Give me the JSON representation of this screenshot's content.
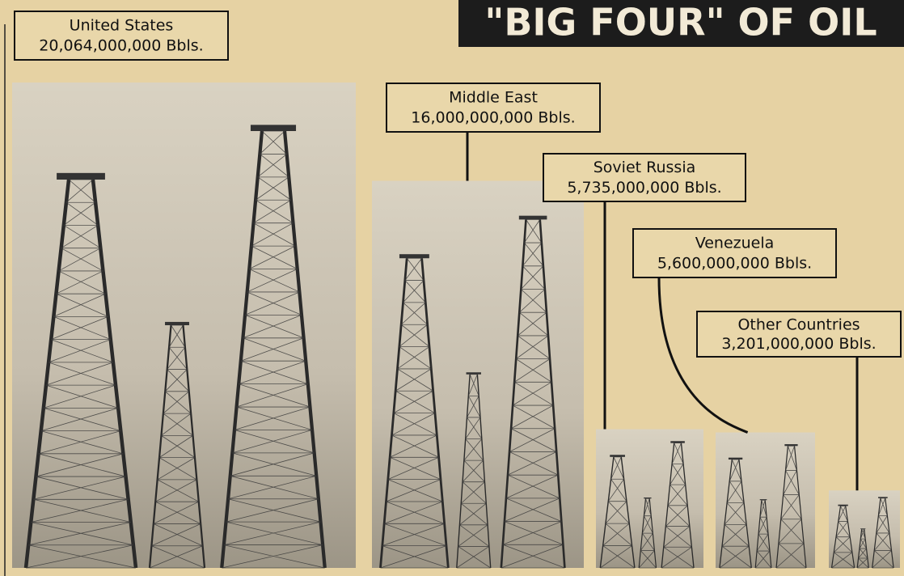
{
  "chart_data": {
    "type": "bar",
    "title": "\"BIG FOUR\" OF OIL",
    "categories": [
      "United States",
      "Middle East",
      "Soviet Russia",
      "Venezuela",
      "Other Countries"
    ],
    "values": [
      20064000000,
      16000000000,
      5735000000,
      5600000000,
      3201000000
    ],
    "value_labels": [
      "20,064,000,000 Bbls.",
      "16,000,000,000 Bbls.",
      "5,735,000,000 Bbls.",
      "5,600,000,000 Bbls.",
      "3,201,000,000 Bbls."
    ]
  }
}
